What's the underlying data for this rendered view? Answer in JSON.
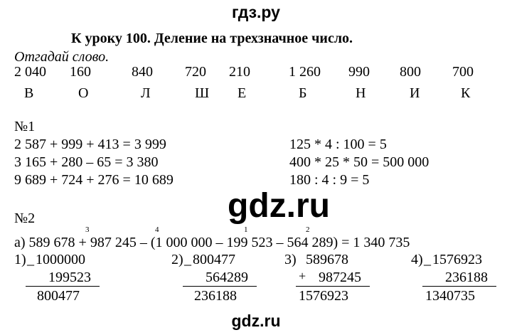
{
  "header": {
    "site": "гдз.ру"
  },
  "title": "К уроку 100.  Деление на трехзначное число.",
  "riddle": {
    "instruction": "Отгадай слово.",
    "numbers": [
      "2 040",
      "160",
      "840",
      "720",
      "210",
      "1 260",
      "990",
      "800",
      "700"
    ],
    "letters": [
      "В",
      "О",
      "Л",
      "Ш",
      "Е",
      "Б",
      "Н",
      "И",
      "К"
    ]
  },
  "task1": {
    "label": "№1",
    "left": [
      "2 587 + 999 + 413 = 3 999",
      "3 165 + 280 – 65 = 3 380",
      "9 689 + 724 + 276 = 10 689"
    ],
    "right": [
      "125 * 4 : 100 = 5",
      "400 * 25 * 50 =  500 000",
      "180 : 4 : 9 = 5"
    ]
  },
  "watermark": "gdz.ru",
  "task2": {
    "label": "№2",
    "order": [
      "3",
      "4",
      "1",
      "2"
    ],
    "expression": "а) 589 678 + 987 245 – (1 000 000 – 199 523 – 564 289) = 1 340 735",
    "columns": [
      {
        "num": "1)",
        "op": "_",
        "a": "1000000",
        "b": "199523",
        "r": "800477"
      },
      {
        "num": "2)",
        "op": "_",
        "a": "800477",
        "b": "564289",
        "r": "236188"
      },
      {
        "num": "3)",
        "op": "+",
        "a": "589678",
        "b": "987245",
        "r": "1576923"
      },
      {
        "num": "4)",
        "op": "_",
        "a": "1576923",
        "b": "236188",
        "r": "1340735"
      }
    ]
  },
  "footer": {
    "watermark": "gdz.ru"
  }
}
